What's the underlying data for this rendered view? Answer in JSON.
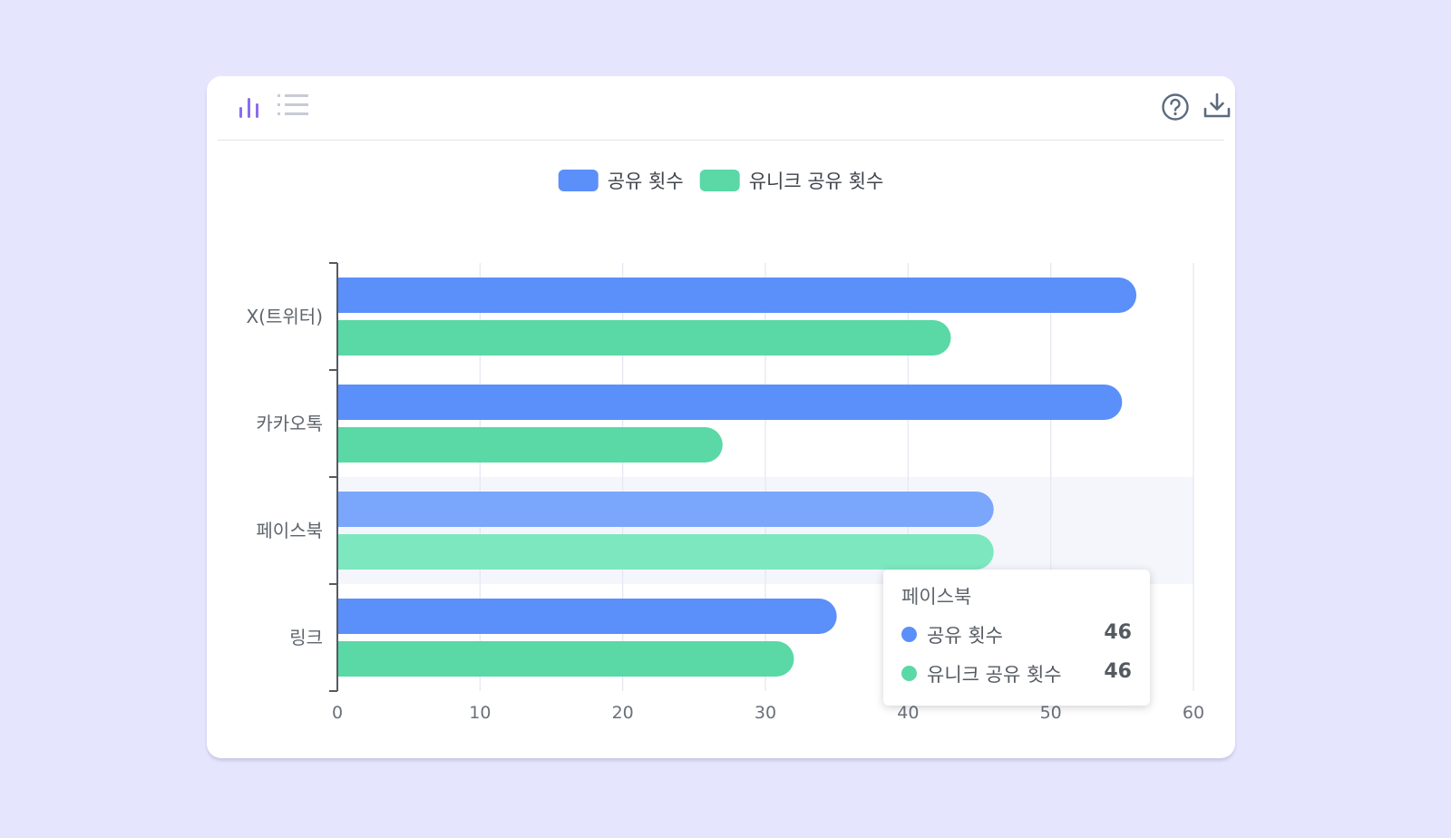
{
  "toolbar": {
    "left_icons": [
      "bar-chart-icon",
      "list-icon"
    ],
    "right_icons": [
      "help-icon",
      "download-icon"
    ],
    "accent_color": "#8b6cf0",
    "icon_color": "#5a6b7f"
  },
  "chart_data": {
    "type": "bar",
    "orientation": "horizontal",
    "title": "",
    "xlabel": "",
    "ylabel": "",
    "categories": [
      "X(트위터)",
      "카카오톡",
      "페이스북",
      "링크"
    ],
    "series": [
      {
        "name": "공유 횟수",
        "color": "#5b8ff9",
        "values": [
          56,
          55,
          46,
          35
        ]
      },
      {
        "name": "유니크 공유 횟수",
        "color": "#5ad8a6",
        "values": [
          43,
          27,
          46,
          32
        ]
      }
    ],
    "xlim": [
      0,
      60
    ],
    "xticks": [
      "0",
      "10",
      "20",
      "30",
      "40",
      "50",
      "60"
    ],
    "grid": true,
    "legend_position": "top-center",
    "highlighted_category": "페이스북"
  },
  "tooltip": {
    "title": "페이스북",
    "rows": [
      {
        "label": "공유 횟수",
        "value": "46",
        "color": "#5b8ff9"
      },
      {
        "label": "유니크 공유 횟수",
        "value": "46",
        "color": "#5ad8a6"
      }
    ]
  }
}
